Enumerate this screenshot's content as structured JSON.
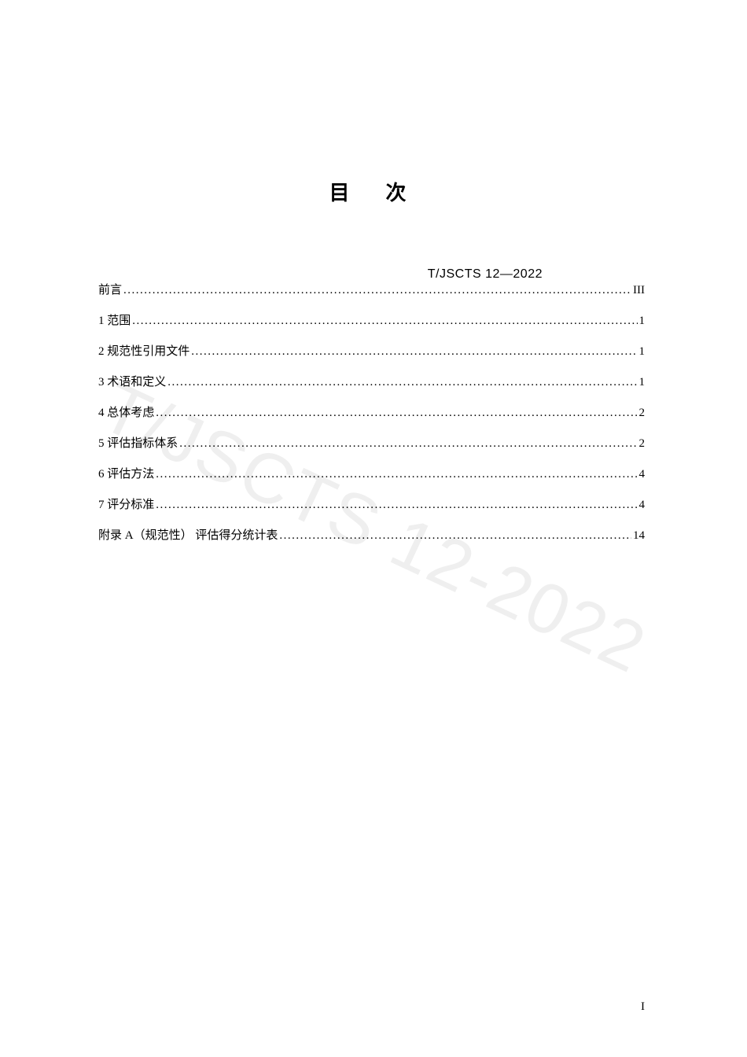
{
  "document": {
    "code": "T/JSCTS 12—2022",
    "title": "目　次",
    "page_number": "I",
    "watermark_text": "T/JSCTS 12-2022",
    "background_color": "#ffffff",
    "text_color": "#000000",
    "watermark_color": "rgba(128,128,128,0.13)",
    "title_fontsize": 26,
    "body_fontsize": 15,
    "header_fontsize": 16
  },
  "toc": {
    "entries": [
      {
        "label": "前言",
        "page": "III"
      },
      {
        "label": "1 范围",
        "page": "1"
      },
      {
        "label": "2 规范性引用文件",
        "page": "1"
      },
      {
        "label": "3 术语和定义",
        "page": "1"
      },
      {
        "label": "4 总体考虑",
        "page": "2"
      },
      {
        "label": "5 评估指标体系",
        "page": "2"
      },
      {
        "label": "6 评估方法",
        "page": "4"
      },
      {
        "label": "7 评分标准",
        "page": "4"
      },
      {
        "label": "附录 A（规范性） 评估得分统计表",
        "page": "14"
      }
    ]
  }
}
